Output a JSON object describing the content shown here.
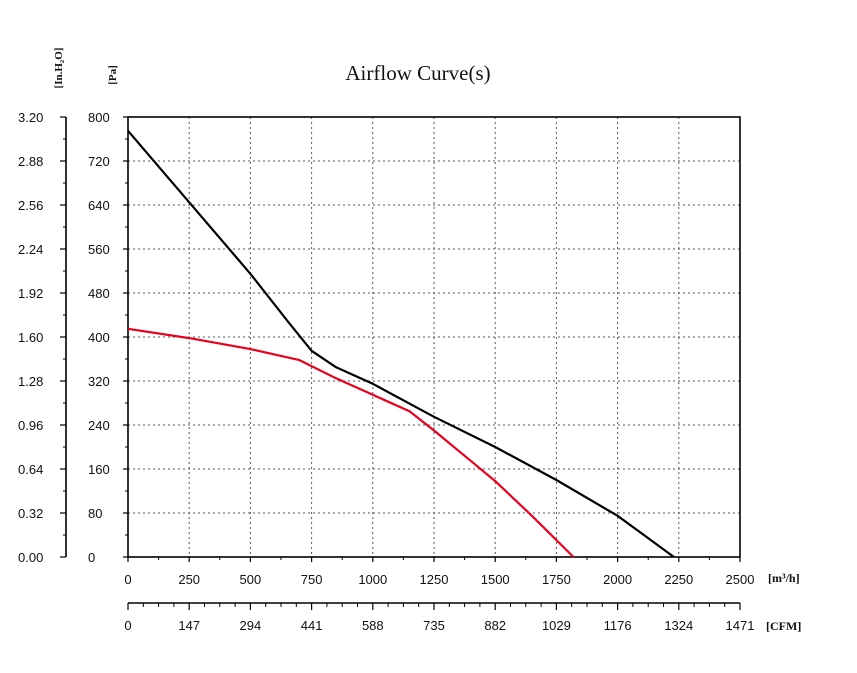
{
  "chart_data": {
    "type": "line",
    "title": "Airflow Curve(s)",
    "x_unit_primary": "[m³/h]",
    "x_unit_secondary": "[CFM]",
    "y_unit_primary": "[Pa]",
    "y_unit_secondary": "[In.H₂O]",
    "xlim": [
      0,
      2500
    ],
    "ylim": [
      0,
      800
    ],
    "x_ticks": [
      "0",
      "250",
      "500",
      "750",
      "1000",
      "1250",
      "1500",
      "1750",
      "2000",
      "2250",
      "2500"
    ],
    "x_ticks_secondary": [
      "0",
      "147",
      "294",
      "441",
      "588",
      "735",
      "882",
      "1029",
      "1176",
      "1324",
      "1471"
    ],
    "y_ticks": [
      "0",
      "80",
      "160",
      "240",
      "320",
      "400",
      "480",
      "560",
      "640",
      "720",
      "800"
    ],
    "y_ticks_secondary": [
      "0.00",
      "0.32",
      "0.64",
      "0.96",
      "1.28",
      "1.60",
      "1.92",
      "2.24",
      "2.56",
      "2.88",
      "3.20"
    ],
    "grid": true,
    "series": [
      {
        "color": "#000000",
        "x": [
          0,
          250,
          500,
          650,
          750,
          850,
          1000,
          1250,
          1500,
          1750,
          2000,
          2230
        ],
        "y": [
          775,
          645,
          515,
          430,
          375,
          345,
          315,
          255,
          200,
          140,
          75,
          0
        ]
      },
      {
        "color": "#e8001c",
        "x": [
          0,
          250,
          500,
          700,
          850,
          1000,
          1150,
          1250,
          1400,
          1500,
          1650,
          1820
        ],
        "y": [
          415,
          398,
          378,
          358,
          325,
          295,
          265,
          230,
          175,
          138,
          75,
          0
        ]
      }
    ]
  }
}
